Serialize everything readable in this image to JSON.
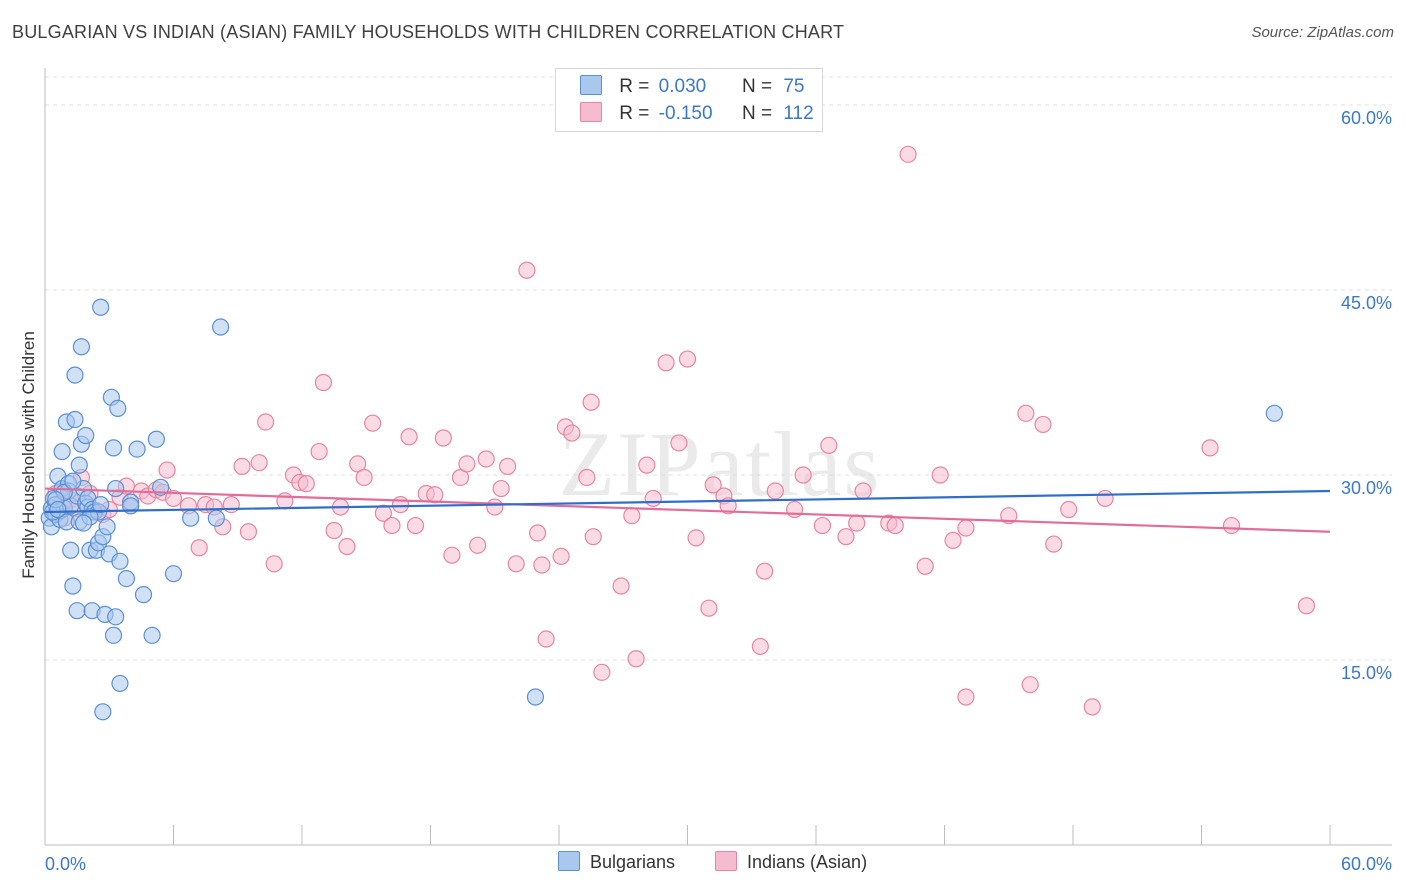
{
  "title": "BULGARIAN VS INDIAN (ASIAN) FAMILY HOUSEHOLDS WITH CHILDREN CORRELATION CHART",
  "source": "Source: ZipAtlas.com",
  "watermark": "ZIPatlas",
  "legend": {
    "row1": {
      "r_label": "R =",
      "r_value": "0.030",
      "n_label": "N =",
      "n_value": "75"
    },
    "row2": {
      "r_label": "R =",
      "r_value": "-0.150",
      "n_label": "N =",
      "n_value": "112"
    }
  },
  "colors": {
    "blue_fill": "#aac8ee",
    "blue_stroke": "#5b8fd4",
    "blue_line": "#2f6fcb",
    "pink_fill": "#f5bccf",
    "pink_stroke": "#e7859f",
    "pink_line": "#e26d98",
    "tick_label": "#3a78c9",
    "grid": "#e0e0e0"
  },
  "chart_data": {
    "type": "scatter",
    "title": "BULGARIAN VS INDIAN (ASIAN) FAMILY HOUSEHOLDS WITH CHILDREN CORRELATION CHART",
    "xlabel": "",
    "ylabel": "Family Households with Children",
    "xlim": [
      0,
      60
    ],
    "ylim": [
      0,
      63
    ],
    "x_tick_labels": [
      "0.0%",
      "60.0%"
    ],
    "y_ticks": [
      15,
      30,
      45,
      60
    ],
    "y_tick_labels": [
      "15.0%",
      "30.0%",
      "45.0%",
      "60.0%"
    ],
    "series": [
      {
        "name": "Bulgarians",
        "color": "#5b8fd4",
        "trend": {
          "x": [
            0,
            60
          ],
          "y": [
            27.0,
            28.7
          ]
        },
        "points": [
          [
            0.2,
            26.5
          ],
          [
            0.3,
            27.3
          ],
          [
            0.3,
            25.8
          ],
          [
            0.4,
            28.1
          ],
          [
            0.5,
            26.8
          ],
          [
            0.5,
            27.6
          ],
          [
            0.6,
            29.9
          ],
          [
            0.7,
            26.4
          ],
          [
            0.7,
            27.1
          ],
          [
            0.8,
            28.9
          ],
          [
            0.8,
            31.9
          ],
          [
            0.9,
            27.3
          ],
          [
            1.0,
            34.3
          ],
          [
            1.0,
            26.2
          ],
          [
            1.1,
            29.3
          ],
          [
            1.1,
            28.7
          ],
          [
            1.2,
            23.9
          ],
          [
            1.2,
            27.5
          ],
          [
            1.3,
            21.0
          ],
          [
            1.4,
            38.1
          ],
          [
            1.4,
            34.5
          ],
          [
            1.5,
            19.0
          ],
          [
            1.5,
            28.3
          ],
          [
            1.6,
            30.8
          ],
          [
            1.6,
            26.2
          ],
          [
            1.7,
            32.5
          ],
          [
            1.7,
            40.4
          ],
          [
            1.8,
            28.9
          ],
          [
            1.9,
            33.2
          ],
          [
            1.9,
            27.7
          ],
          [
            2.0,
            27.4
          ],
          [
            2.0,
            28.1
          ],
          [
            2.1,
            23.9
          ],
          [
            2.2,
            19.0
          ],
          [
            2.2,
            27.2
          ],
          [
            2.3,
            27.0
          ],
          [
            2.4,
            23.9
          ],
          [
            2.5,
            24.5
          ],
          [
            2.5,
            27.0
          ],
          [
            2.6,
            43.6
          ],
          [
            2.7,
            25.0
          ],
          [
            2.7,
            10.8
          ],
          [
            2.8,
            18.7
          ],
          [
            2.9,
            25.8
          ],
          [
            3.0,
            23.6
          ],
          [
            3.1,
            36.3
          ],
          [
            3.2,
            32.2
          ],
          [
            3.2,
            17.0
          ],
          [
            3.3,
            18.5
          ],
          [
            3.3,
            28.9
          ],
          [
            3.4,
            35.4
          ],
          [
            3.5,
            13.1
          ],
          [
            3.5,
            23.0
          ],
          [
            3.8,
            21.6
          ],
          [
            4.0,
            27.8
          ],
          [
            4.3,
            32.1
          ],
          [
            4.6,
            20.3
          ],
          [
            5.0,
            17.0
          ],
          [
            5.2,
            32.9
          ],
          [
            5.4,
            29.0
          ],
          [
            6.0,
            22.0
          ],
          [
            6.8,
            26.5
          ],
          [
            8.0,
            26.5
          ],
          [
            8.2,
            42.0
          ],
          [
            22.9,
            12.0
          ],
          [
            57.4,
            35.0
          ],
          [
            0.35,
            27.0
          ],
          [
            0.9,
            28.6
          ],
          [
            1.3,
            29.5
          ],
          [
            2.1,
            26.6
          ],
          [
            0.5,
            28.0
          ],
          [
            1.8,
            26.1
          ],
          [
            4.0,
            27.5
          ],
          [
            2.6,
            27.6
          ],
          [
            0.6,
            27.2
          ]
        ]
      },
      {
        "name": "Indians (Asian)",
        "color": "#e7859f",
        "trend": {
          "x": [
            0,
            60
          ],
          "y": [
            28.9,
            25.4
          ]
        },
        "points": [
          [
            0.5,
            28.5
          ],
          [
            0.8,
            27.8
          ],
          [
            1.2,
            28.0
          ],
          [
            1.5,
            27.3
          ],
          [
            1.7,
            29.8
          ],
          [
            2.1,
            28.5
          ],
          [
            2.4,
            27.1
          ],
          [
            2.7,
            26.8
          ],
          [
            3.0,
            27.2
          ],
          [
            3.5,
            28.2
          ],
          [
            3.8,
            29.1
          ],
          [
            4.0,
            27.5
          ],
          [
            4.5,
            28.7
          ],
          [
            4.8,
            28.3
          ],
          [
            5.2,
            28.8
          ],
          [
            5.5,
            28.6
          ],
          [
            5.7,
            30.4
          ],
          [
            6.0,
            28.1
          ],
          [
            6.7,
            27.5
          ],
          [
            7.2,
            24.1
          ],
          [
            7.5,
            27.6
          ],
          [
            7.9,
            27.4
          ],
          [
            8.3,
            25.8
          ],
          [
            8.7,
            27.6
          ],
          [
            9.2,
            30.7
          ],
          [
            9.5,
            25.4
          ],
          [
            10.0,
            31.0
          ],
          [
            10.3,
            34.3
          ],
          [
            10.7,
            22.8
          ],
          [
            11.2,
            27.9
          ],
          [
            11.6,
            30.0
          ],
          [
            11.9,
            29.4
          ],
          [
            12.2,
            29.3
          ],
          [
            12.8,
            31.9
          ],
          [
            13.0,
            37.5
          ],
          [
            13.5,
            25.5
          ],
          [
            13.8,
            27.4
          ],
          [
            14.1,
            24.2
          ],
          [
            14.6,
            30.9
          ],
          [
            14.9,
            29.8
          ],
          [
            15.3,
            34.2
          ],
          [
            15.8,
            26.9
          ],
          [
            16.2,
            25.9
          ],
          [
            16.6,
            27.6
          ],
          [
            17.0,
            33.1
          ],
          [
            17.3,
            25.9
          ],
          [
            17.8,
            28.5
          ],
          [
            18.2,
            28.4
          ],
          [
            18.6,
            33.0
          ],
          [
            19.0,
            23.5
          ],
          [
            19.4,
            29.8
          ],
          [
            19.7,
            30.9
          ],
          [
            20.2,
            24.3
          ],
          [
            20.6,
            31.3
          ],
          [
            21.0,
            27.4
          ],
          [
            21.3,
            28.9
          ],
          [
            21.6,
            30.7
          ],
          [
            22.0,
            22.8
          ],
          [
            22.5,
            46.6
          ],
          [
            23.0,
            25.3
          ],
          [
            23.2,
            22.7
          ],
          [
            23.4,
            16.7
          ],
          [
            24.1,
            23.4
          ],
          [
            24.3,
            33.9
          ],
          [
            24.6,
            33.4
          ],
          [
            25.3,
            29.8
          ],
          [
            25.5,
            35.9
          ],
          [
            25.6,
            25.0
          ],
          [
            26.0,
            14.0
          ],
          [
            26.9,
            21.0
          ],
          [
            27.4,
            26.7
          ],
          [
            27.6,
            15.1
          ],
          [
            28.1,
            30.8
          ],
          [
            28.4,
            28.1
          ],
          [
            29.0,
            39.1
          ],
          [
            29.6,
            32.6
          ],
          [
            30.0,
            39.4
          ],
          [
            30.4,
            24.9
          ],
          [
            31.0,
            19.2
          ],
          [
            31.2,
            29.2
          ],
          [
            31.7,
            28.3
          ],
          [
            31.9,
            27.5
          ],
          [
            33.4,
            16.1
          ],
          [
            33.6,
            22.2
          ],
          [
            34.1,
            28.7
          ],
          [
            35.0,
            27.2
          ],
          [
            35.4,
            30.0
          ],
          [
            36.3,
            25.9
          ],
          [
            36.6,
            32.4
          ],
          [
            37.4,
            25.0
          ],
          [
            37.9,
            26.1
          ],
          [
            38.2,
            28.7
          ],
          [
            39.4,
            26.1
          ],
          [
            39.7,
            25.9
          ],
          [
            40.3,
            56.0
          ],
          [
            41.1,
            22.6
          ],
          [
            41.8,
            30.0
          ],
          [
            42.4,
            24.7
          ],
          [
            43.0,
            12.0
          ],
          [
            43.0,
            25.7
          ],
          [
            45.0,
            26.7
          ],
          [
            45.8,
            35.0
          ],
          [
            46.0,
            13.0
          ],
          [
            46.6,
            34.1
          ],
          [
            47.1,
            24.4
          ],
          [
            47.8,
            27.2
          ],
          [
            48.9,
            11.2
          ],
          [
            49.5,
            28.1
          ],
          [
            54.4,
            32.2
          ],
          [
            55.4,
            25.9
          ],
          [
            58.9,
            19.4
          ],
          [
            0.9,
            26.5
          ]
        ]
      }
    ]
  }
}
